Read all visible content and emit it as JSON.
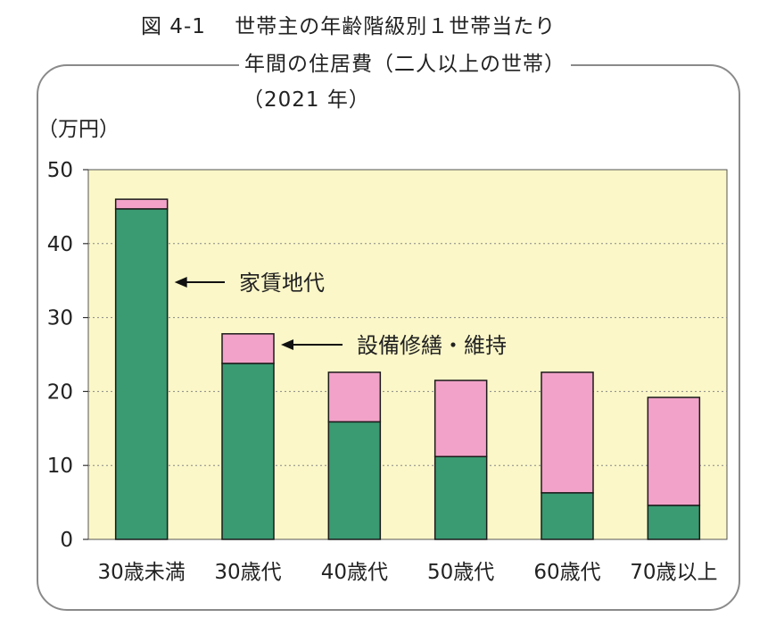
{
  "figure": {
    "number": "図 4-1",
    "title_line1": "世帯主の年齢階級別１世帯当たり",
    "title_line2": "年間の住居費（二人以上の世帯）",
    "title_line3": "（2021 年）"
  },
  "chart_data": {
    "type": "bar",
    "stacked": true,
    "title": "図 4-1　世帯主の年齢階級別１世帯当たり 年間の住居費（二人以上の世帯）（2021 年）",
    "ylabel": "（万円）",
    "xlabel": "",
    "ylim": [
      0,
      50
    ],
    "yticks": [
      "0",
      "10",
      "20",
      "30",
      "40",
      "50"
    ],
    "grid": true,
    "categories": [
      "30歳未満",
      "30歳代",
      "40歳代",
      "50歳代",
      "60歳代",
      "70歳以上"
    ],
    "series": [
      {
        "name": "家賃地代",
        "color": "#3a9a72",
        "values": [
          44.7,
          23.8,
          15.9,
          11.2,
          6.3,
          4.6
        ]
      },
      {
        "name": "設備修繕・維持",
        "color": "#f2a2c8",
        "values": [
          1.3,
          4.0,
          6.7,
          10.3,
          16.3,
          14.6
        ]
      }
    ],
    "annotations": [
      {
        "text": "家賃地代",
        "points_to": "家賃地代"
      },
      {
        "text": "設備修繕・維持",
        "points_to": "設備修繕・維持"
      }
    ],
    "plot_background": "#fbf7c8"
  }
}
